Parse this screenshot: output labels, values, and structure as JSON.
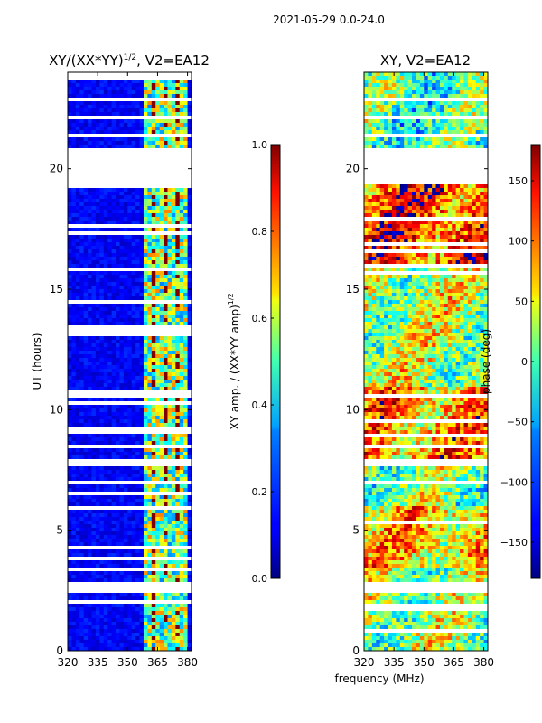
{
  "figure": {
    "suptitle": "2021-05-29 0.0-24.0",
    "xlabel_shared": "frequency (MHz)"
  },
  "chart_data": [
    {
      "type": "heatmap",
      "title": "XY/(XX*YY)",
      "title_exponent": "1/2",
      "title_suffix": ", V2=EA12",
      "ylabel": "UT (hours)",
      "xlabel": "frequency (MHz)",
      "x_ticks": [
        320,
        335,
        350,
        365,
        380
      ],
      "y_ticks": [
        0,
        5,
        10,
        15,
        20
      ],
      "x_tick_labels": [
        "320",
        "335",
        "350",
        "365",
        "380"
      ],
      "y_tick_labels": [
        "0",
        "5",
        "10",
        "15",
        "20"
      ],
      "xlim": [
        320,
        382
      ],
      "ylim": [
        0,
        24
      ],
      "colormap": "jet",
      "colorbar": {
        "label": "XY amp. / (XX*YY amp)",
        "label_exponent": "1/2",
        "range": [
          0.0,
          1.0
        ],
        "ticks": [
          0.0,
          0.2,
          0.4,
          0.6,
          0.8,
          1.0
        ],
        "tick_labels": [
          "0.0",
          "0.2",
          "0.4",
          "0.6",
          "0.8",
          "1.0"
        ]
      },
      "gap_hours": [
        [
          2.4,
          2.8
        ],
        [
          6.9,
          7.1
        ],
        [
          7.7,
          7.9
        ],
        [
          8.4,
          8.6
        ],
        [
          19.4,
          20.8
        ],
        [
          21.3,
          21.5
        ],
        [
          22.0,
          22.2
        ],
        [
          22.8,
          23.0
        ]
      ],
      "high_band_mhz": [
        358,
        380
      ],
      "low_band_value": 0.12,
      "high_band_value": 0.5
    },
    {
      "type": "heatmap",
      "title": "XY, V2=EA12",
      "ylabel": "",
      "xlabel": "frequency (MHz)",
      "x_ticks": [
        320,
        335,
        350,
        365,
        380
      ],
      "y_ticks": [
        0,
        5,
        10,
        15,
        20
      ],
      "x_tick_labels": [
        "320",
        "335",
        "350",
        "365",
        "380"
      ],
      "y_tick_labels": [
        "0",
        "5",
        "10",
        "15",
        "20"
      ],
      "xlim": [
        320,
        382
      ],
      "ylim": [
        0,
        24
      ],
      "colormap": "jet",
      "colorbar": {
        "label": "phase (deg)",
        "range": [
          -180,
          180
        ],
        "ticks": [
          -150,
          -100,
          -50,
          0,
          50,
          100,
          150
        ],
        "tick_labels": [
          "−150",
          "−100",
          "−50",
          "0",
          "50",
          "100",
          "150"
        ]
      },
      "gap_hours": [
        [
          2.4,
          2.8
        ],
        [
          6.9,
          7.1
        ],
        [
          7.7,
          7.9
        ],
        [
          8.4,
          8.6
        ],
        [
          19.4,
          20.8
        ],
        [
          21.3,
          21.5
        ],
        [
          22.0,
          22.2
        ],
        [
          22.8,
          23.0
        ]
      ],
      "phase_blocks": [
        {
          "t0": 0,
          "t1": 3.5,
          "deg": 10
        },
        {
          "t0": 3.5,
          "t1": 6,
          "deg": 60
        },
        {
          "t0": 6,
          "t1": 8,
          "deg": 0
        },
        {
          "t0": 8,
          "t1": 11,
          "deg": 80
        },
        {
          "t0": 11,
          "t1": 16,
          "deg": 20
        },
        {
          "t0": 16,
          "t1": 19.4,
          "deg": 110
        },
        {
          "t0": 19.4,
          "t1": 24,
          "deg": -20
        }
      ]
    }
  ]
}
